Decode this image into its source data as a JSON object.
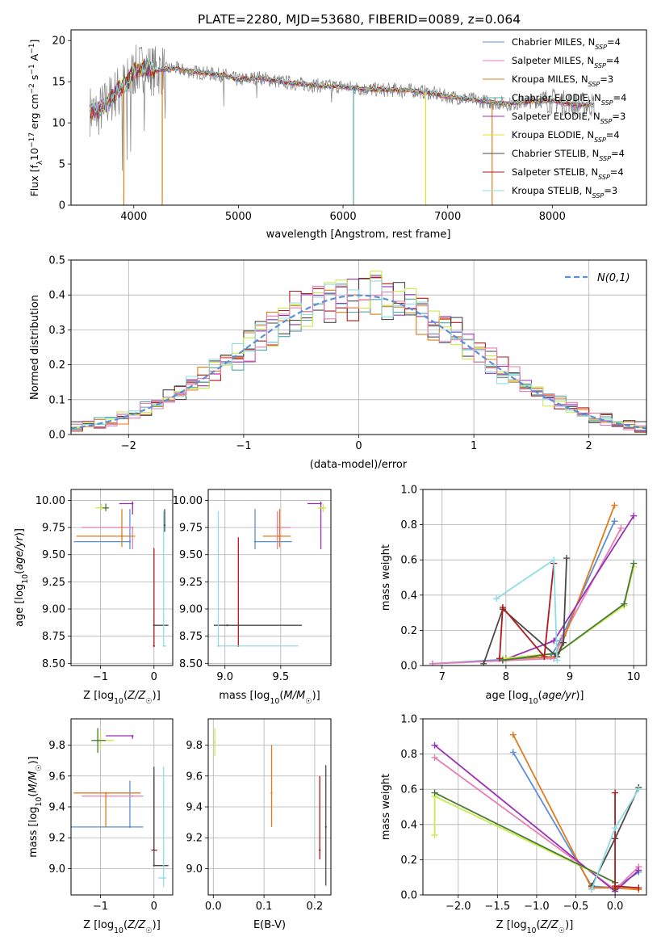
{
  "figure_title": "PLATE=2280, MJD=53680, FIBERID=0089, z=0.064",
  "colors": {
    "Chabrier MILES": "#5b8fd6",
    "Salpeter MILES": "#e67fb4",
    "Kroupa MILES": "#e07b1b",
    "Chabrier ELODIE": "#4fa8a8",
    "Salpeter ELODIE": "#9b30b8",
    "Kroupa ELODIE": "#e3e02a",
    "Chabrier STELIB": "#4a4a4a",
    "Salpeter STELIB": "#b11a1a",
    "Kroupa STELIB": "#8fdde3",
    "data": "#808080"
  },
  "chart_data": [
    {
      "id": "spectrum",
      "type": "line",
      "title": "PLATE=2280, MJD=53680, FIBERID=0089, z=0.064",
      "xlabel": "wavelength [Angstrom, rest frame]",
      "ylabel": "Flux [f_λ 10^-17 erg cm^-2 s^-1 A^-1]",
      "xlim": [
        3400,
        8900
      ],
      "ylim": [
        0,
        21.3
      ],
      "xticks": [
        4000,
        5000,
        6000,
        7000,
        8000
      ],
      "yticks": [
        0,
        5,
        10,
        15,
        20
      ],
      "grid": false,
      "legend_placement": "top-right",
      "continuum": {
        "x": [
          3580,
          3650,
          3750,
          3850,
          3930,
          4000,
          4100,
          4200,
          4300,
          4400,
          4500,
          4700,
          4860,
          5000,
          5200,
          5400,
          5600,
          5800,
          6000,
          6200,
          6400,
          6600,
          6800,
          7000,
          7200,
          7400,
          7600,
          7800,
          8000,
          8200,
          8400
        ],
        "y": [
          11.5,
          11.2,
          12.5,
          14.0,
          14.8,
          16.2,
          16.8,
          16.3,
          16.5,
          16.6,
          16.3,
          16.0,
          15.8,
          15.2,
          15.5,
          15.0,
          14.7,
          14.5,
          14.4,
          14.1,
          14.0,
          14.0,
          13.7,
          13.2,
          12.9,
          12.5,
          12.3,
          12.6,
          12.7,
          12.2,
          12.2
        ]
      },
      "absorption_spikes": [
        {
          "x": 3860,
          "y": 11.0
        },
        {
          "x": 3890,
          "y": 4.2
        },
        {
          "x": 3935,
          "y": 5.5
        },
        {
          "x": 3970,
          "y": 6.5
        },
        {
          "x": 4102,
          "y": 9.0
        },
        {
          "x": 4300,
          "y": 10.5
        },
        {
          "x": 4861,
          "y": 12.0
        },
        {
          "x": 5175,
          "y": 13.0
        },
        {
          "x": 5892,
          "y": 12.5
        },
        {
          "x": 6563,
          "y": 13.0
        }
      ],
      "model_spikes": [
        {
          "x": 3905,
          "y": 0,
          "color": "Kroupa MILES"
        },
        {
          "x": 4272,
          "y": 0,
          "color": "Kroupa MILES"
        },
        {
          "x": 6100,
          "y": 0,
          "color": "Chabrier ELODIE"
        },
        {
          "x": 6790,
          "y": 0,
          "color": "Kroupa ELODIE"
        },
        {
          "x": 7425,
          "y": 0,
          "color": "Kroupa MILES"
        }
      ],
      "series": [
        {
          "name": "Chabrier MILES, N_SSP=4",
          "label_main": "Chabrier MILES, N",
          "label_sub": "SSP",
          "label_tail": "=4",
          "color": "#5b8fd6"
        },
        {
          "name": "Salpeter MILES, N_SSP=4",
          "label_main": "Salpeter MILES, N",
          "label_sub": "SSP",
          "label_tail": "=4",
          "color": "#e67fb4"
        },
        {
          "name": "Kroupa MILES, N_SSP=3",
          "label_main": "Kroupa MILES, N",
          "label_sub": "SSP",
          "label_tail": "=3",
          "color": "#e07b1b"
        },
        {
          "name": "Chabrier ELODIE, N_SSP=4",
          "label_main": "Chabrier ELODIE, N",
          "label_sub": "SSP",
          "label_tail": "=4",
          "color": "#4fa8a8"
        },
        {
          "name": "Salpeter ELODIE, N_SSP=3",
          "label_main": "Salpeter ELODIE, N",
          "label_sub": "SSP",
          "label_tail": "=3",
          "color": "#9b30b8"
        },
        {
          "name": "Kroupa ELODIE, N_SSP=4",
          "label_main": "Kroupa ELODIE, N",
          "label_sub": "SSP",
          "label_tail": "=4",
          "color": "#e3e02a"
        },
        {
          "name": "Chabrier STELIB, N_SSP=4",
          "label_main": "Chabrier STELIB, N",
          "label_sub": "SSP",
          "label_tail": "=4",
          "color": "#4a4a4a"
        },
        {
          "name": "Salpeter STELIB, N_SSP=4",
          "label_main": "Salpeter STELIB, N",
          "label_sub": "SSP",
          "label_tail": "=4",
          "color": "#b11a1a"
        },
        {
          "name": "Kroupa STELIB, N_SSP=3",
          "label_main": "Kroupa STELIB, N",
          "label_sub": "SSP",
          "label_tail": "=3",
          "color": "#8fdde3"
        }
      ]
    },
    {
      "id": "residuals",
      "type": "histogram",
      "xlabel": "(data-model)/error",
      "ylabel": "Normed distribution",
      "xlim": [
        -2.5,
        2.5
      ],
      "ylim": [
        0,
        0.5
      ],
      "xticks": [
        -2,
        -1,
        0,
        1,
        2
      ],
      "yticks": [
        0.0,
        0.1,
        0.2,
        0.3,
        0.4,
        0.5
      ],
      "grid": true,
      "legend_placement": "top-right",
      "legend": "N(0,1)",
      "bin_width": 0.1,
      "bin_start": -2.5,
      "normal_curve_color": "#5b8fd6",
      "hist_colors": [
        "#9b30b8",
        "#e07b1b",
        "#4fa8a8",
        "#b11a1a",
        "#4a4a4a",
        "#c8ec4a",
        "#8fdde3",
        "#e67fb4"
      ]
    },
    {
      "id": "age_vs_Z",
      "type": "errorbar",
      "xlabel": "Z [log10(Z/Z☉)]",
      "ylabel": "age [log10(age/yr)]",
      "xlim": [
        -1.55,
        0.35
      ],
      "ylim": [
        8.48,
        10.1
      ],
      "xticks": [
        -1,
        0
      ],
      "yticks": [
        8.5,
        8.75,
        9.0,
        9.25,
        9.5,
        9.75,
        10.0
      ],
      "grid": true,
      "points": [
        {
          "x": -0.45,
          "y": 9.62,
          "xerr": [
            1.05,
            0.0
          ],
          "yerr": [
            0.07,
            0.3
          ],
          "c": "#5b8fd6"
        },
        {
          "x": -0.4,
          "y": 9.75,
          "xerr": [
            0.95,
            0.0
          ],
          "yerr": [
            0.2,
            0.0
          ],
          "c": "#e67fb4"
        },
        {
          "x": -0.6,
          "y": 9.67,
          "xerr": [
            0.85,
            0.25
          ],
          "yerr": [
            0.1,
            0.25
          ],
          "c": "#e07b1b"
        },
        {
          "x": -0.4,
          "y": 9.97,
          "xerr": [
            0.25,
            0.0
          ],
          "yerr": [
            0.1,
            0.02
          ],
          "c": "#9b30b8"
        },
        {
          "x": -0.98,
          "y": 9.93,
          "xerr": [
            0.12,
            0.12
          ],
          "yerr": [
            0.02,
            0.04
          ],
          "c": "#c8ec4a"
        },
        {
          "x": -0.9,
          "y": 9.93,
          "xerr": [
            0.06,
            0.06
          ],
          "yerr": [
            0.03,
            0.04
          ],
          "c": "#4a7a3a"
        },
        {
          "x": 0.0,
          "y": 8.66,
          "xerr": [
            0.0,
            0.0
          ],
          "yerr": [
            0.0,
            0.9
          ],
          "c": "#b11a1a"
        },
        {
          "x": 0.0,
          "y": 8.85,
          "xerr": [
            0.0,
            0.27
          ],
          "yerr": [
            0.0,
            0.0
          ],
          "c": "#4a4a4a"
        },
        {
          "x": 0.18,
          "y": 8.66,
          "xerr": [
            0.0,
            0.05
          ],
          "yerr": [
            0.0,
            1.24
          ],
          "c": "#8fdde3"
        },
        {
          "x": 0.2,
          "y": 9.77,
          "xerr": [
            0.0,
            0.0
          ],
          "yerr": [
            0.06,
            0.15
          ],
          "c": "#4a4a4a"
        }
      ]
    },
    {
      "id": "age_vs_mass",
      "type": "errorbar",
      "xlabel": "mass [log10(M/M☉)]",
      "ylabel": "",
      "xlim": [
        8.85,
        9.95
      ],
      "ylim": [
        8.48,
        10.1
      ],
      "xticks": [
        9.0,
        9.5
      ],
      "yticks": [
        8.5,
        8.75,
        9.0,
        9.25,
        9.5,
        9.75,
        10.0
      ],
      "grid": true,
      "points": [
        {
          "x": 9.27,
          "y": 9.62,
          "xerr": [
            0.0,
            0.33
          ],
          "yerr": [
            0.07,
            0.3
          ],
          "c": "#5b8fd6"
        },
        {
          "x": 9.47,
          "y": 9.75,
          "xerr": [
            0.0,
            0.12
          ],
          "yerr": [
            0.2,
            0.15
          ],
          "c": "#e67fb4"
        },
        {
          "x": 9.49,
          "y": 9.67,
          "xerr": [
            0.15,
            0.1
          ],
          "yerr": [
            0.1,
            0.25
          ],
          "c": "#e07b1b"
        },
        {
          "x": 9.86,
          "y": 9.97,
          "xerr": [
            0.12,
            0.0
          ],
          "yerr": [
            0.42,
            0.02
          ],
          "c": "#9b30b8"
        },
        {
          "x": 9.88,
          "y": 9.93,
          "xerr": [
            0.05,
            0.03
          ],
          "yerr": [
            0.04,
            0.04
          ],
          "c": "#c8ec4a"
        },
        {
          "x": 9.12,
          "y": 8.66,
          "xerr": [
            0.0,
            0.0
          ],
          "yerr": [
            0.0,
            1.0
          ],
          "c": "#b11a1a"
        },
        {
          "x": 9.02,
          "y": 8.85,
          "xerr": [
            0.12,
            0.67
          ],
          "yerr": [
            0.0,
            0.0
          ],
          "c": "#4a4a4a"
        },
        {
          "x": 8.94,
          "y": 8.66,
          "xerr": [
            0.0,
            0.72
          ],
          "yerr": [
            0.0,
            1.24
          ],
          "c": "#8fdde3"
        }
      ]
    },
    {
      "id": "mass_weight_vs_age",
      "type": "line",
      "xlabel": "age [log10(age/yr)]",
      "ylabel": "mass weight",
      "xlim": [
        6.7,
        10.2
      ],
      "ylim": [
        0,
        1.0
      ],
      "xticks": [
        7,
        8,
        9,
        10
      ],
      "yticks": [
        0.0,
        0.2,
        0.4,
        0.6,
        0.8,
        1.0
      ],
      "grid": true,
      "series": [
        {
          "c": "#5b8fd6",
          "x": [
            6.85,
            8.7,
            8.85,
            9.7
          ],
          "y": [
            0.01,
            0.05,
            0.14,
            0.82
          ]
        },
        {
          "c": "#e67fb4",
          "x": [
            6.85,
            8.75,
            8.9,
            9.8
          ],
          "y": [
            0.01,
            0.04,
            0.17,
            0.78
          ]
        },
        {
          "c": "#e07b1b",
          "x": [
            8.0,
            8.8,
            9.7
          ],
          "y": [
            0.04,
            0.05,
            0.91
          ]
        },
        {
          "c": "#9b30b8",
          "x": [
            7.95,
            8.75,
            10.0
          ],
          "y": [
            0.03,
            0.14,
            0.85
          ]
        },
        {
          "c": "#c8ec4a",
          "x": [
            7.95,
            8.8,
            9.85,
            10.0
          ],
          "y": [
            0.04,
            0.07,
            0.34,
            0.56
          ]
        },
        {
          "c": "#4a7a3a",
          "x": [
            7.95,
            8.8,
            9.85,
            10.0
          ],
          "y": [
            0.03,
            0.07,
            0.35,
            0.58
          ]
        },
        {
          "c": "#4a4a4a",
          "x": [
            7.65,
            7.95,
            8.8,
            8.9,
            8.95
          ],
          "y": [
            0.01,
            0.32,
            0.05,
            0.13,
            0.61
          ]
        },
        {
          "c": "#b11a1a",
          "x": [
            7.9,
            7.95,
            8.6,
            8.75
          ],
          "y": [
            0.04,
            0.33,
            0.05,
            0.58
          ]
        },
        {
          "c": "#8fdde3",
          "x": [
            7.85,
            8.75,
            8.8
          ],
          "y": [
            0.38,
            0.6,
            0.03
          ]
        }
      ]
    },
    {
      "id": "mass_vs_Z",
      "type": "errorbar",
      "xlabel": "Z [log10(Z/Z☉)]",
      "ylabel": "mass [log10(M/M☉)]",
      "xlim": [
        -1.55,
        0.35
      ],
      "ylim": [
        8.83,
        9.97
      ],
      "xticks": [
        -1,
        0
      ],
      "yticks": [
        9.0,
        9.2,
        9.4,
        9.6,
        9.8
      ],
      "grid": true,
      "points": [
        {
          "x": -0.45,
          "y": 9.27,
          "xerr": [
            1.5,
            0.25
          ],
          "yerr": [
            0.0,
            0.3
          ],
          "c": "#5b8fd6"
        },
        {
          "x": -0.4,
          "y": 9.47,
          "xerr": [
            0.95,
            0.2
          ],
          "yerr": [
            0.0,
            0.0
          ],
          "c": "#e67fb4"
        },
        {
          "x": -0.9,
          "y": 9.49,
          "xerr": [
            0.6,
            0.65
          ],
          "yerr": [
            0.22,
            0.0
          ],
          "c": "#e07b1b"
        },
        {
          "x": -0.4,
          "y": 9.86,
          "xerr": [
            0.5,
            0.0
          ],
          "yerr": [
            0.02,
            0.0
          ],
          "c": "#9b30b8"
        },
        {
          "x": -1.0,
          "y": 9.83,
          "xerr": [
            0.1,
            0.25
          ],
          "yerr": [
            0.06,
            0.06
          ],
          "c": "#c8ec4a"
        },
        {
          "x": -1.05,
          "y": 9.83,
          "xerr": [
            0.12,
            0.15
          ],
          "yerr": [
            0.08,
            0.08
          ],
          "c": "#4a7a3a"
        },
        {
          "x": 0.0,
          "y": 9.12,
          "xerr": [
            0.05,
            0.06
          ],
          "yerr": [
            0.0,
            0.48
          ],
          "c": "#b11a1a"
        },
        {
          "x": 0.0,
          "y": 9.02,
          "xerr": [
            0.0,
            0.27
          ],
          "yerr": [
            0.0,
            0.64
          ],
          "c": "#4a4a4a"
        },
        {
          "x": 0.18,
          "y": 8.94,
          "xerr": [
            0.1,
            0.05
          ],
          "yerr": [
            0.06,
            0.72
          ],
          "c": "#8fdde3"
        }
      ]
    },
    {
      "id": "mass_vs_ebv",
      "type": "errorbar",
      "xlabel": "E(B-V)",
      "ylabel": "",
      "xlim": [
        -0.01,
        0.232
      ],
      "ylim": [
        8.83,
        9.97
      ],
      "xticks": [
        0.0,
        0.1,
        0.2
      ],
      "yticks": [
        9.0,
        9.2,
        9.4,
        9.6,
        9.8
      ],
      "grid": true,
      "points": [
        {
          "x": 0.003,
          "y": 9.82,
          "xerr": [
            0.0,
            0.0
          ],
          "yerr": [
            0.09,
            0.09
          ],
          "c": "#c8ec4a"
        },
        {
          "x": 0.115,
          "y": 9.49,
          "xerr": [
            0.0,
            0.0
          ],
          "yerr": [
            0.22,
            0.31
          ],
          "c": "#e07b1b"
        },
        {
          "x": 0.21,
          "y": 9.12,
          "xerr": [
            0.0,
            0.0
          ],
          "yerr": [
            0.06,
            0.48
          ],
          "c": "#b11a1a"
        },
        {
          "x": 0.222,
          "y": 9.27,
          "xerr": [
            0.0,
            0.0
          ],
          "yerr": [
            0.38,
            0.4
          ],
          "c": "#4a4a4a"
        }
      ]
    },
    {
      "id": "mass_weight_vs_Z",
      "type": "line",
      "xlabel": "Z [log10(Z/Z☉)]",
      "ylabel": "mass weight",
      "xlim": [
        -2.45,
        0.4
      ],
      "ylim": [
        0,
        1.0
      ],
      "xticks": [
        -2.0,
        -1.5,
        -1.0,
        -0.5,
        0.0
      ],
      "yticks": [
        0.0,
        0.2,
        0.4,
        0.6,
        0.8,
        1.0
      ],
      "grid": true,
      "series": [
        {
          "c": "#5b8fd6",
          "x": [
            -1.3,
            -0.3,
            0.0,
            0.3
          ],
          "y": [
            0.81,
            0.05,
            0.04,
            0.13
          ]
        },
        {
          "c": "#e67fb4",
          "x": [
            -2.3,
            0.0,
            0.3
          ],
          "y": [
            0.78,
            0.03,
            0.16
          ]
        },
        {
          "c": "#e07b1b",
          "x": [
            -1.3,
            -0.3,
            0.0,
            0.3
          ],
          "y": [
            0.91,
            0.04,
            0.04,
            0.03
          ]
        },
        {
          "c": "#9b30b8",
          "x": [
            -2.3,
            0.0,
            0.3
          ],
          "y": [
            0.85,
            0.02,
            0.14
          ]
        },
        {
          "c": "#c8ec4a",
          "x": [
            -2.3,
            -2.3,
            0.0,
            0.0
          ],
          "y": [
            0.34,
            0.56,
            0.07,
            0.04
          ]
        },
        {
          "c": "#4a7a3a",
          "x": [
            -2.3,
            0.0,
            0.0
          ],
          "y": [
            0.58,
            0.07,
            0.03
          ]
        },
        {
          "c": "#4a4a4a",
          "x": [
            -0.3,
            0.0,
            0.3
          ],
          "y": [
            0.05,
            0.32,
            0.61
          ]
        },
        {
          "c": "#b11a1a",
          "x": [
            0.0,
            0.0,
            0.0,
            0.3
          ],
          "y": [
            0.04,
            0.58,
            0.05,
            0.04
          ]
        },
        {
          "c": "#8fdde3",
          "x": [
            -0.3,
            0.0,
            0.3
          ],
          "y": [
            0.03,
            0.38,
            0.6
          ]
        }
      ]
    }
  ]
}
